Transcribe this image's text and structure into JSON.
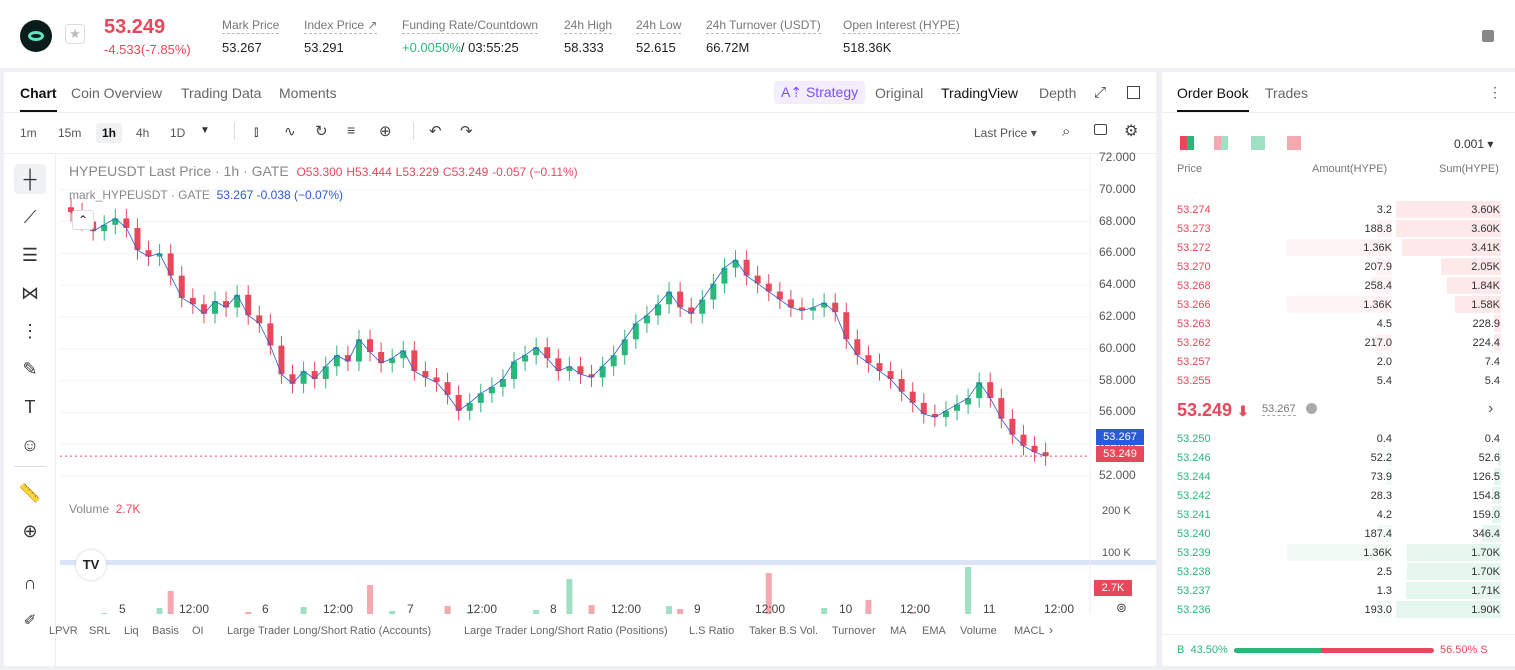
{
  "ticker": {
    "price": "53.249",
    "change": "-4.533(-7.85%)",
    "stats": [
      {
        "label": "Mark Price",
        "value": "53.267"
      },
      {
        "label": "Index Price ↗",
        "value": "53.291"
      },
      {
        "label": "Funding Rate/Countdown",
        "value": "+0.0050%",
        "value2": "/ 03:55:25"
      },
      {
        "label": "24h High",
        "value": "58.333"
      },
      {
        "label": "24h Low",
        "value": "52.615"
      },
      {
        "label": "24h Turnover (USDT)",
        "value": "66.72M"
      },
      {
        "label": "Open Interest (HYPE)",
        "value": "518.36K"
      }
    ]
  },
  "chart_tabs": [
    "Chart",
    "Coin Overview",
    "Trading Data",
    "Moments"
  ],
  "view_tabs": {
    "strategy": "Strategy",
    "original": "Original",
    "tradingview": "TradingView",
    "depth": "Depth"
  },
  "timeframes": [
    "1m",
    "15m",
    "1h",
    "4h",
    "1D"
  ],
  "last_price_label": "Last Price",
  "legend": {
    "title": "HYPEUSDT Last Price · 1h · GATE",
    "o": "O53.300",
    "h": "H53.444",
    "l": "L53.229",
    "c": "C53.249",
    "chg": "-0.057 (−0.11%)",
    "mark": "mark_HYPEUSDT · GATE",
    "mark_val": "53.267",
    "mark_chg": "-0.038 (−0.07%)"
  },
  "volume": {
    "label": "Volume",
    "value": "2.7K",
    "badge": "2.7K",
    "axis": [
      "200 K",
      "100 K"
    ]
  },
  "y_axis": [
    "72.000",
    "70.000",
    "68.000",
    "66.000",
    "64.000",
    "62.000",
    "60.000",
    "58.000",
    "56.000",
    "54.000",
    "52.000"
  ],
  "price_badges": {
    "mark": "53.267",
    "last": "53.249"
  },
  "x_axis": [
    "5",
    "12:00",
    "6",
    "12:00",
    "7",
    "12:00",
    "8",
    "12:00",
    "9",
    "12:00",
    "10",
    "12:00",
    "11",
    "12:00"
  ],
  "indicators": [
    "LPVR",
    "SRL",
    "Liq",
    "Basis",
    "OI",
    "Large Trader Long/Short Ratio (Accounts)",
    "Large Trader Long/Short Ratio (Positions)",
    "L.S Ratio",
    "Taker B.S Vol.",
    "Turnover",
    "MA",
    "EMA",
    "Volume",
    "MACL"
  ],
  "chart_data": {
    "type": "candlestick",
    "series": [
      {
        "name": "HYPEUSDT Last Price",
        "close": [
          68.6,
          68.0,
          67.4,
          67.8,
          68.2,
          67.6,
          66.2,
          65.8,
          66.0,
          64.6,
          63.2,
          62.8,
          62.2,
          63.0,
          62.6,
          63.4,
          62.1,
          61.6,
          60.2,
          58.4,
          57.8,
          58.6,
          58.1,
          58.9,
          59.6,
          59.2,
          60.6,
          59.8,
          59.1,
          59.4,
          59.9,
          58.6,
          58.2,
          57.9,
          57.1,
          56.1,
          56.6,
          57.2,
          57.6,
          58.1,
          59.2,
          59.6,
          60.1,
          59.4,
          58.6,
          58.9,
          58.4,
          58.2,
          58.9,
          59.6,
          60.6,
          61.6,
          62.1,
          62.8,
          63.6,
          62.6,
          62.2,
          63.1,
          64.1,
          65.1,
          65.6,
          64.6,
          64.1,
          63.6,
          63.1,
          62.6,
          62.4,
          62.6,
          62.9,
          62.3,
          60.6,
          59.6,
          59.1,
          58.6,
          58.1,
          57.3,
          56.6,
          55.9,
          55.7,
          56.1,
          56.5,
          56.9,
          57.9,
          56.9,
          55.6,
          54.6,
          53.9,
          53.5,
          53.249
        ]
      }
    ]
  }
}
